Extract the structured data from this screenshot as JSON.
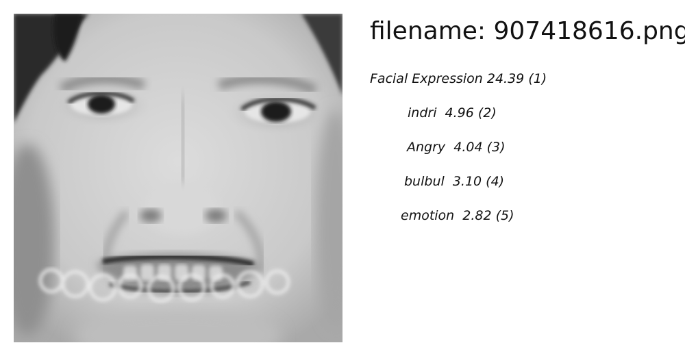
{
  "filename_line": "filename: 907418616.png",
  "predictions": [
    {
      "label": "Facial Expression",
      "score": "24.39",
      "rank": "(1)",
      "text": "Facial Expression 24.39 (1)"
    },
    {
      "label": "indri",
      "score": "4.96",
      "rank": "(2)",
      "text": "indri  4.96 (2)"
    },
    {
      "label": "Angry",
      "score": "4.04",
      "rank": "(3)",
      "text": "Angry  4.04 (3)"
    },
    {
      "label": "bulbul",
      "score": "3.10",
      "rank": "(4)",
      "text": "bulbul  3.10 (4)"
    },
    {
      "label": "emotion",
      "score": "2.82",
      "rank": "(5)",
      "text": "emotion  2.82 (5)"
    }
  ]
}
